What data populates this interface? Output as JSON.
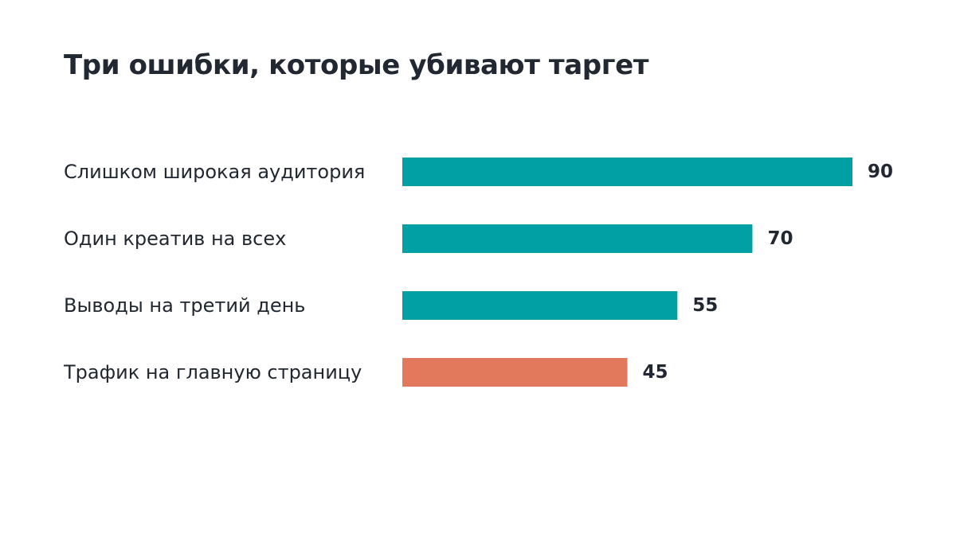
{
  "chart_data": {
    "type": "bar",
    "orientation": "horizontal",
    "title": "Три ошибки, которые убивают таргет",
    "categories": [
      "Слишком широкая аудитория",
      "Один креатив на всех",
      "Выводы на третий день",
      "Трафик на главную страницу"
    ],
    "values": [
      90,
      70,
      55,
      45
    ],
    "colors": [
      "#00a0a4",
      "#00a0a4",
      "#00a0a4",
      "#e2795c"
    ],
    "xlim": [
      0,
      90
    ],
    "grid": false,
    "legend": "none"
  }
}
